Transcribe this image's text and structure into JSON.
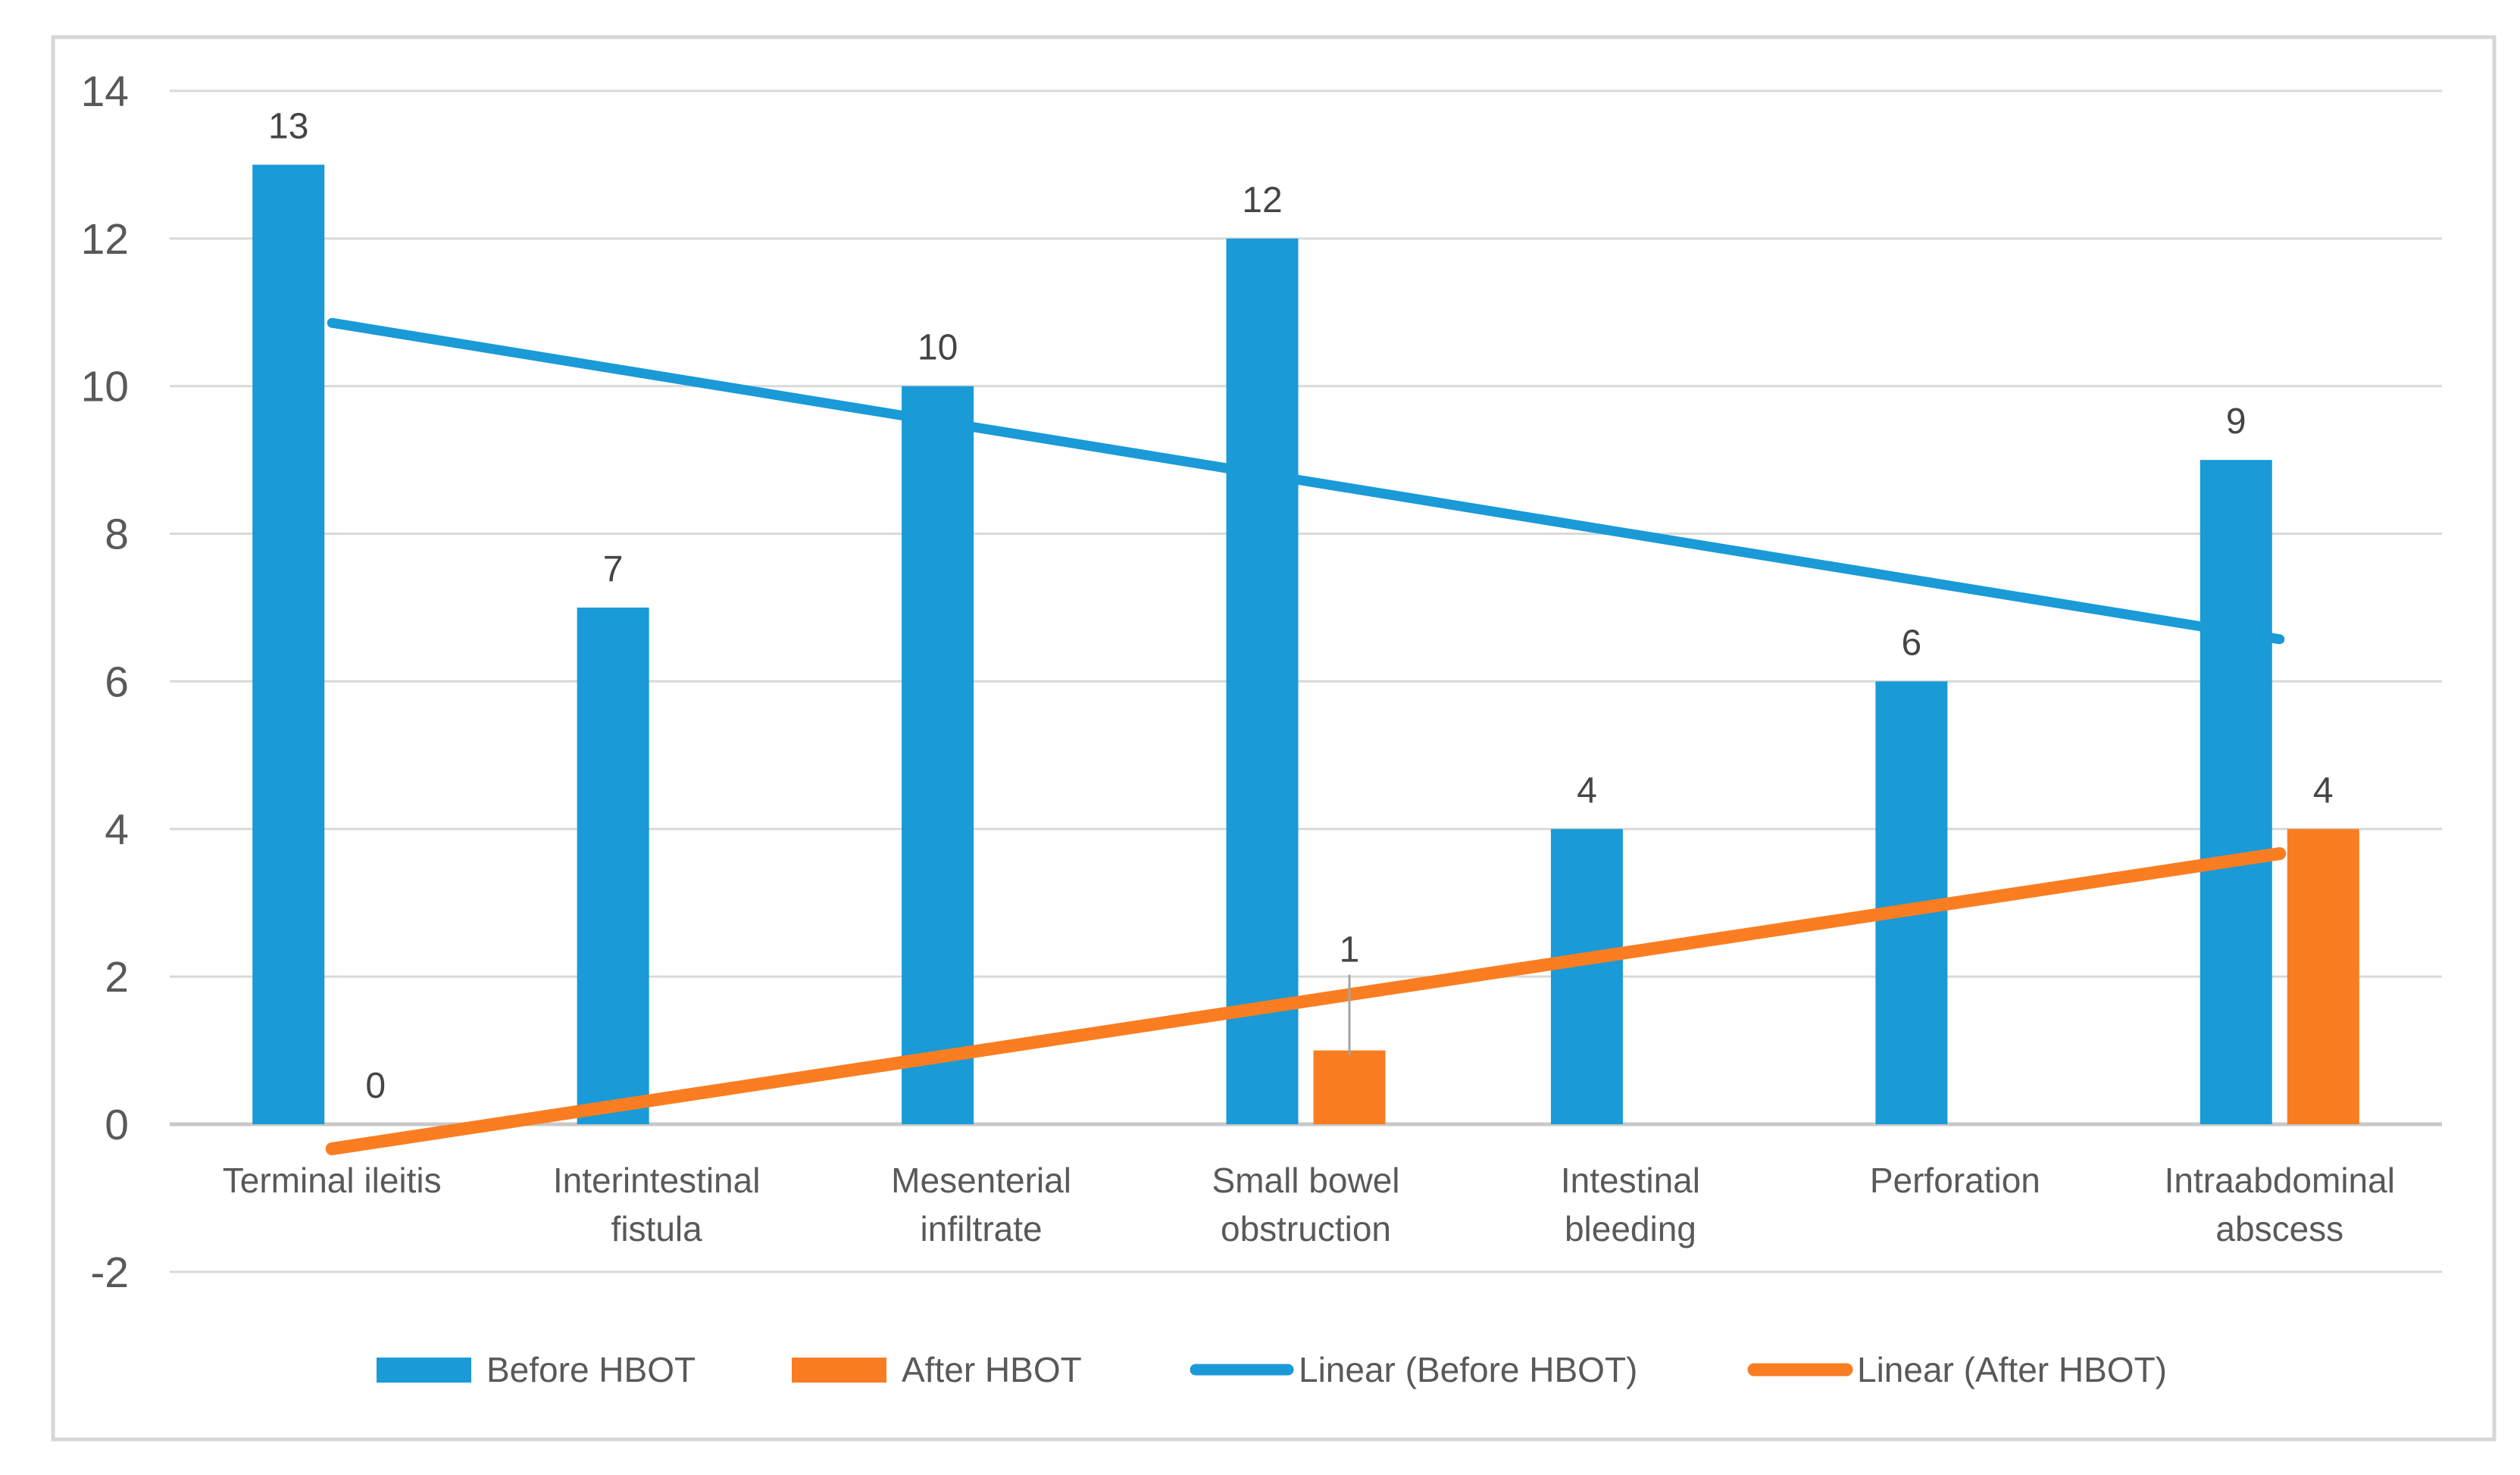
{
  "chart_data": {
    "type": "bar",
    "title": "",
    "categories": [
      "Terminal ileitis",
      "Interintestinal fistula",
      "Mesenterial infiltrate",
      "Small bowel obstruction",
      "Intestinal bleeding",
      "Perforation",
      "Intraabdominal abscess"
    ],
    "category_label_lines": [
      [
        "Terminal ileitis"
      ],
      [
        "Interintestinal",
        "fistula"
      ],
      [
        "Mesenterial",
        "infiltrate"
      ],
      [
        "Small bowel",
        "obstruction"
      ],
      [
        "Intestinal",
        "bleeding"
      ],
      [
        "Perforation"
      ],
      [
        "Intraabdominal",
        "abscess"
      ]
    ],
    "series": [
      {
        "name": "Before HBOT",
        "type": "bar",
        "color": "#1A9AD7",
        "values": [
          13,
          7,
          10,
          12,
          4,
          6,
          9
        ]
      },
      {
        "name": "After HBOT",
        "type": "bar",
        "color": "#FB7D22",
        "values": [
          0,
          null,
          null,
          1,
          null,
          null,
          4
        ]
      }
    ],
    "data_labels_shown": true,
    "label_overrides": [
      {
        "series_index": 1,
        "category_index": 3,
        "lift": 82,
        "leader": true
      }
    ],
    "trendlines": [
      {
        "name": "Linear (Before HBOT)",
        "color": "#1A9AD7",
        "start_value": 10.857,
        "end_value": 6.571,
        "stroke_width": 13
      },
      {
        "name": "Linear (After HBOT)",
        "color": "#FB7D22",
        "start_value": -0.333,
        "end_value": 3.667,
        "stroke_width": 17
      }
    ],
    "y_axis": {
      "min": -2,
      "max": 14,
      "tick_step": 2,
      "ticks": [
        14,
        12,
        10,
        8,
        6,
        4,
        2,
        0,
        -2
      ]
    },
    "x_axis": {
      "labels_visible": true
    },
    "grid": true,
    "legend": {
      "position": "bottom",
      "entries": [
        {
          "label": "Before HBOT",
          "swatch": "bar",
          "color": "#1A9AD7"
        },
        {
          "label": "After HBOT",
          "swatch": "bar",
          "color": "#FB7D22"
        },
        {
          "label": "Linear (Before HBOT)",
          "swatch": "line",
          "color": "#1A9AD7"
        },
        {
          "label": "Linear (After HBOT)",
          "swatch": "line",
          "color": "#FB7D22"
        }
      ]
    },
    "colors": {
      "before": "#1A9AD7",
      "after": "#FB7D22",
      "gridline": "#D9D9D9",
      "axis_line": "#C8C8C8",
      "axis_text": "#595959",
      "data_label_text": "#454545",
      "chart_border": "#D7D7D7",
      "leader_line": "#A3A3A3",
      "background": "#FFFFFF"
    }
  }
}
